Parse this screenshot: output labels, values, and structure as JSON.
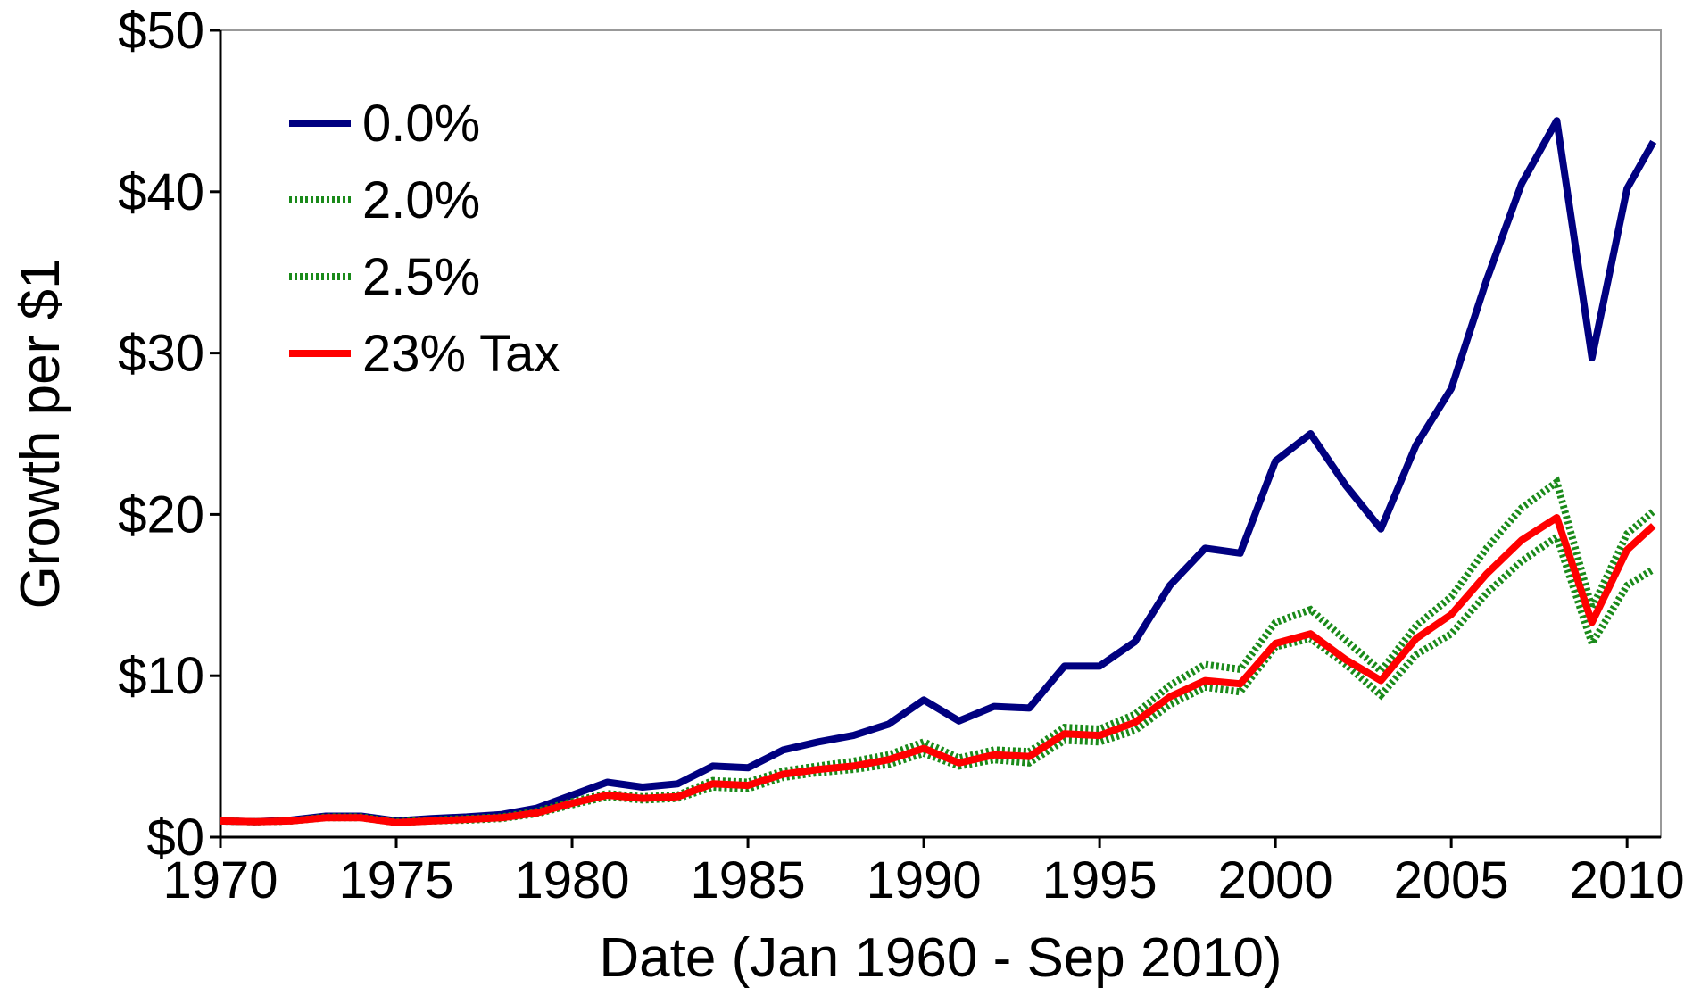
{
  "chart_data": {
    "type": "line",
    "xlabel": "Date (Jan 1960 - Sep 2010)",
    "ylabel": "Growth per $1",
    "x": [
      1970,
      1971,
      1972,
      1973,
      1974,
      1975,
      1976,
      1977,
      1978,
      1979,
      1980,
      1981,
      1982,
      1983,
      1984,
      1985,
      1986,
      1987,
      1988,
      1989,
      1990,
      1991,
      1992,
      1993,
      1994,
      1995,
      1996,
      1997,
      1998,
      1999,
      2000,
      2001,
      2002,
      2003,
      2004,
      2005,
      2006,
      2007,
      2008,
      2009,
      2010,
      2010.75
    ],
    "series": [
      {
        "name": "0.0%",
        "color": "#000080",
        "style": "solid",
        "values": [
          1.0,
          0.95,
          1.05,
          1.3,
          1.3,
          1.0,
          1.15,
          1.25,
          1.4,
          1.8,
          2.6,
          3.4,
          3.1,
          3.3,
          4.4,
          4.3,
          5.4,
          5.9,
          6.3,
          7.0,
          8.5,
          7.2,
          8.1,
          8.0,
          10.6,
          10.6,
          12.1,
          15.6,
          17.9,
          17.6,
          23.3,
          25.0,
          21.8,
          19.1,
          24.3,
          27.8,
          34.5,
          40.5,
          44.4,
          29.7,
          40.2,
          43.1
        ]
      },
      {
        "name": "2.0%",
        "color": "#1a8a1a",
        "style": "dotted",
        "values": [
          1.0,
          0.95,
          1.0,
          1.25,
          1.25,
          0.95,
          1.05,
          1.15,
          1.25,
          1.6,
          2.2,
          2.7,
          2.5,
          2.6,
          3.5,
          3.4,
          4.1,
          4.4,
          4.7,
          5.1,
          5.9,
          4.9,
          5.4,
          5.3,
          6.8,
          6.7,
          7.6,
          9.4,
          10.7,
          10.4,
          13.3,
          14.1,
          12.2,
          10.3,
          13.1,
          14.9,
          17.9,
          20.4,
          22.0,
          14.2,
          18.8,
          20.2
        ]
      },
      {
        "name": "2.5%",
        "color": "#1a8a1a",
        "style": "dotted",
        "values": [
          1.0,
          0.95,
          1.0,
          1.2,
          1.2,
          0.9,
          1.0,
          1.05,
          1.15,
          1.45,
          2.0,
          2.5,
          2.3,
          2.4,
          3.1,
          3.0,
          3.7,
          4.0,
          4.2,
          4.5,
          5.2,
          4.4,
          4.8,
          4.6,
          6.0,
          5.9,
          6.6,
          8.2,
          9.3,
          9.0,
          11.8,
          12.3,
          10.7,
          8.8,
          11.3,
          12.6,
          15.1,
          17.1,
          18.6,
          12.0,
          15.6,
          16.6
        ]
      },
      {
        "name": "23% Tax",
        "color": "#ff0000",
        "style": "solid",
        "values": [
          1.0,
          0.95,
          1.0,
          1.2,
          1.2,
          0.9,
          1.0,
          1.1,
          1.2,
          1.5,
          2.1,
          2.6,
          2.4,
          2.5,
          3.3,
          3.2,
          3.9,
          4.2,
          4.4,
          4.8,
          5.5,
          4.6,
          5.1,
          5.0,
          6.4,
          6.3,
          7.1,
          8.7,
          9.7,
          9.5,
          12.0,
          12.6,
          11.0,
          9.7,
          12.3,
          13.8,
          16.3,
          18.4,
          19.8,
          13.3,
          17.8,
          19.3
        ]
      }
    ],
    "xlim": [
      1970,
      2010.96
    ],
    "xticks": [
      1970,
      1975,
      1980,
      1985,
      1990,
      1995,
      2000,
      2005,
      2010
    ],
    "ylim": [
      0,
      50
    ],
    "yticks": [
      {
        "value": 0,
        "label": "$0"
      },
      {
        "value": 10,
        "label": "$10"
      },
      {
        "value": 20,
        "label": "$20"
      },
      {
        "value": 30,
        "label": "$30"
      },
      {
        "value": 40,
        "label": "$40"
      },
      {
        "value": 50,
        "label": "$50"
      }
    ],
    "grid": false,
    "legend": "upper left"
  }
}
